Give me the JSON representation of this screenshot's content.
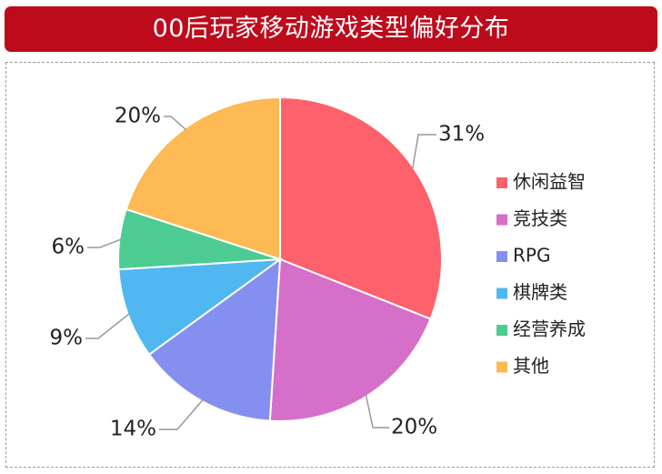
{
  "chart_data": {
    "type": "pie",
    "title": "00后玩家移动游戏类型偏好分布",
    "legend_position": "right",
    "slices": [
      {
        "label": "休闲益智",
        "value": 31,
        "value_label": "31%",
        "color": "#fd616b"
      },
      {
        "label": "竞技类",
        "value": 20,
        "value_label": "20%",
        "color": "#d56fca"
      },
      {
        "label": "RPG",
        "value": 14,
        "value_label": "14%",
        "color": "#858ff0"
      },
      {
        "label": "棋牌类",
        "value": 9,
        "value_label": "9%",
        "color": "#50b7f1"
      },
      {
        "label": "经营养成",
        "value": 6,
        "value_label": "6%",
        "color": "#4ccb92"
      },
      {
        "label": "其他",
        "value": 20,
        "value_label": "20%",
        "color": "#fcb954"
      }
    ]
  }
}
